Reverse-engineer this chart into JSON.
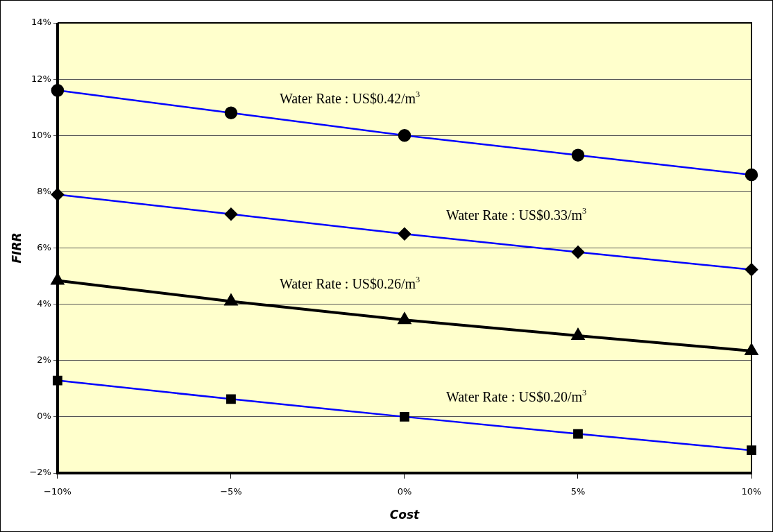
{
  "chart_data": {
    "type": "line",
    "xlabel": "Cost",
    "ylabel": "FIRR",
    "x": [
      -10,
      -5,
      0,
      5,
      10
    ],
    "xlim": [
      -10,
      10
    ],
    "xticks": [
      {
        "value": -10,
        "label": "−10%"
      },
      {
        "value": -5,
        "label": "−5%"
      },
      {
        "value": 0,
        "label": "0%"
      },
      {
        "value": 5,
        "label": "5%"
      },
      {
        "value": 10,
        "label": "10%"
      }
    ],
    "ylim": [
      -2,
      14
    ],
    "yticks": [
      {
        "value": -2,
        "label": "−2%"
      },
      {
        "value": 0,
        "label": "0%"
      },
      {
        "value": 2,
        "label": "2%"
      },
      {
        "value": 4,
        "label": "4%"
      },
      {
        "value": 6,
        "label": "6%"
      },
      {
        "value": 8,
        "label": "8%"
      },
      {
        "value": 10,
        "label": "10%"
      },
      {
        "value": 12,
        "label": "12%"
      },
      {
        "value": 14,
        "label": "14%"
      }
    ],
    "grid": "y",
    "legend": false,
    "series": [
      {
        "name": "Water Rate : US$0.42/m$^{3}$",
        "color": "#0000ff",
        "marker": "circle",
        "values": [
          11.6,
          10.8,
          10.0,
          9.3,
          8.6
        ]
      },
      {
        "name": "Water Rate : US$0.33/m$^{3}$",
        "color": "#0000ff",
        "marker": "diamond",
        "values": [
          7.9,
          7.2,
          6.5,
          5.85,
          5.23
        ]
      },
      {
        "name": "Water Rate : US$0.26/m$^{3}$",
        "color": "#000000",
        "marker": "triangle",
        "values": [
          4.84,
          4.1,
          3.44,
          2.88,
          2.34
        ]
      },
      {
        "name": "Water Rate : US$0.20/m$^{3}$",
        "color": "#0000ff",
        "marker": "square",
        "values": [
          1.29,
          0.63,
          0,
          -0.61,
          -1.19
        ]
      }
    ]
  }
}
